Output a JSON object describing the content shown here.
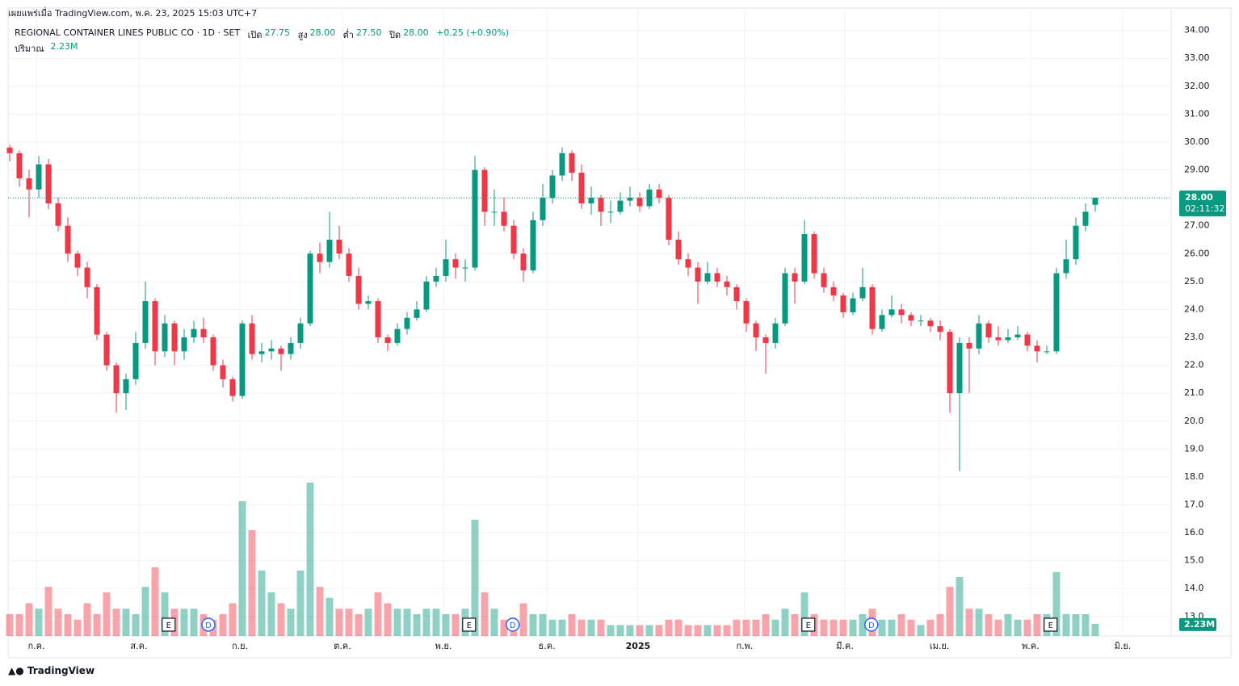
{
  "chart_data": {
    "type": "candlestick",
    "published": "เผยแพร่เมื่อ TradingView.com, พ.ค. 23, 2025 15:03 UTC+7",
    "title": "REGIONAL CONTAINER LINES PUBLIC CO · 1D · SET",
    "legend": {
      "open_label": "เปิด",
      "open": "27.75",
      "high_label": "สูง",
      "high": "28.00",
      "low_label": "ต่ำ",
      "low": "27.50",
      "close_label": "ปิด",
      "close": "28.00",
      "change": "+0.25 (+0.90%)"
    },
    "up_color": "#089981",
    "down_color": "#f23645",
    "candles": [
      [
        29.8,
        29.9,
        29.3,
        29.6
      ],
      [
        29.6,
        29.7,
        28.4,
        28.7
      ],
      [
        28.7,
        29.0,
        27.3,
        28.3
      ],
      [
        28.3,
        29.5,
        28.0,
        29.2
      ],
      [
        29.2,
        29.4,
        27.6,
        27.8
      ],
      [
        27.8,
        28.0,
        26.8,
        27.0
      ],
      [
        27.0,
        27.3,
        25.7,
        26.0
      ],
      [
        26.0,
        26.1,
        25.2,
        25.5
      ],
      [
        25.5,
        25.7,
        24.4,
        24.8
      ],
      [
        24.8,
        24.9,
        22.9,
        23.1
      ],
      [
        23.1,
        23.2,
        21.8,
        22.0
      ],
      [
        22.0,
        22.1,
        20.3,
        21.0
      ],
      [
        21.0,
        21.7,
        20.4,
        21.5
      ],
      [
        21.5,
        23.2,
        21.3,
        22.8
      ],
      [
        22.8,
        25.0,
        22.6,
        24.3
      ],
      [
        24.3,
        24.4,
        22.0,
        22.5
      ],
      [
        22.5,
        23.8,
        22.3,
        23.5
      ],
      [
        23.5,
        23.6,
        22.0,
        22.5
      ],
      [
        22.5,
        23.3,
        22.2,
        23.0
      ],
      [
        23.0,
        23.6,
        22.8,
        23.3
      ],
      [
        23.3,
        23.7,
        22.8,
        23.0
      ],
      [
        23.0,
        23.1,
        21.8,
        22.0
      ],
      [
        22.0,
        22.2,
        21.2,
        21.5
      ],
      [
        21.5,
        21.6,
        20.7,
        20.9
      ],
      [
        20.9,
        23.6,
        20.8,
        23.5
      ],
      [
        23.5,
        23.8,
        22.2,
        22.4
      ],
      [
        22.4,
        22.8,
        22.1,
        22.5
      ],
      [
        22.5,
        22.9,
        22.2,
        22.6
      ],
      [
        22.6,
        22.7,
        21.8,
        22.4
      ],
      [
        22.4,
        23.0,
        22.2,
        22.8
      ],
      [
        22.8,
        23.7,
        22.6,
        23.5
      ],
      [
        23.5,
        26.1,
        23.4,
        26.0
      ],
      [
        26.0,
        26.4,
        25.3,
        25.7
      ],
      [
        25.7,
        27.5,
        25.5,
        26.5
      ],
      [
        26.5,
        27.0,
        25.8,
        26.0
      ],
      [
        26.0,
        26.2,
        25.0,
        25.2
      ],
      [
        25.2,
        25.5,
        24.0,
        24.2
      ],
      [
        24.2,
        24.5,
        24.0,
        24.3
      ],
      [
        24.3,
        24.4,
        22.8,
        23.0
      ],
      [
        23.0,
        23.1,
        22.5,
        22.8
      ],
      [
        22.8,
        23.5,
        22.7,
        23.3
      ],
      [
        23.3,
        23.9,
        23.1,
        23.7
      ],
      [
        23.7,
        24.3,
        23.6,
        24.0
      ],
      [
        24.0,
        25.2,
        23.9,
        25.0
      ],
      [
        25.0,
        25.5,
        24.8,
        25.2
      ],
      [
        25.2,
        26.5,
        25.0,
        25.8
      ],
      [
        25.8,
        26.0,
        25.1,
        25.5
      ],
      [
        25.5,
        25.8,
        25.0,
        25.5
      ],
      [
        25.5,
        29.5,
        25.4,
        29.0
      ],
      [
        29.0,
        29.1,
        27.0,
        27.5
      ],
      [
        27.5,
        28.3,
        27.0,
        27.5
      ],
      [
        27.5,
        28.0,
        26.8,
        27.0
      ],
      [
        27.0,
        27.2,
        25.8,
        26.0
      ],
      [
        26.0,
        26.2,
        25.0,
        25.4
      ],
      [
        25.4,
        27.5,
        25.3,
        27.2
      ],
      [
        27.2,
        28.5,
        27.0,
        28.0
      ],
      [
        28.0,
        29.0,
        27.8,
        28.8
      ],
      [
        28.8,
        29.8,
        28.6,
        29.6
      ],
      [
        29.6,
        29.7,
        28.6,
        28.9
      ],
      [
        28.9,
        29.2,
        27.6,
        27.8
      ],
      [
        27.8,
        28.4,
        27.4,
        28.0
      ],
      [
        28.0,
        28.1,
        27.0,
        27.5
      ],
      [
        27.5,
        27.9,
        27.1,
        27.5
      ],
      [
        27.5,
        28.2,
        27.4,
        27.9
      ],
      [
        27.9,
        28.4,
        27.7,
        28.0
      ],
      [
        28.0,
        28.2,
        27.5,
        27.7
      ],
      [
        27.7,
        28.5,
        27.6,
        28.3
      ],
      [
        28.3,
        28.5,
        27.8,
        28.0
      ],
      [
        28.0,
        28.1,
        26.3,
        26.5
      ],
      [
        26.5,
        26.8,
        25.6,
        25.8
      ],
      [
        25.8,
        26.0,
        25.2,
        25.5
      ],
      [
        25.5,
        25.7,
        24.2,
        25.0
      ],
      [
        25.0,
        25.7,
        24.9,
        25.3
      ],
      [
        25.3,
        25.5,
        24.8,
        25.0
      ],
      [
        25.0,
        25.2,
        24.5,
        24.8
      ],
      [
        24.8,
        24.9,
        24.0,
        24.3
      ],
      [
        24.3,
        24.4,
        23.2,
        23.5
      ],
      [
        23.5,
        23.6,
        22.5,
        23.0
      ],
      [
        23.0,
        23.1,
        21.7,
        22.8
      ],
      [
        22.8,
        23.7,
        22.6,
        23.5
      ],
      [
        23.5,
        25.5,
        23.4,
        25.3
      ],
      [
        25.3,
        25.5,
        24.2,
        25.0
      ],
      [
        25.0,
        27.2,
        24.9,
        26.7
      ],
      [
        26.7,
        26.8,
        25.1,
        25.3
      ],
      [
        25.3,
        25.5,
        24.6,
        24.8
      ],
      [
        24.8,
        25.0,
        24.3,
        24.5
      ],
      [
        24.5,
        24.6,
        23.7,
        23.9
      ],
      [
        23.9,
        24.6,
        23.8,
        24.4
      ],
      [
        24.4,
        25.5,
        24.3,
        24.8
      ],
      [
        24.8,
        24.9,
        23.1,
        23.3
      ],
      [
        23.3,
        24.0,
        23.2,
        23.8
      ],
      [
        23.8,
        24.5,
        23.7,
        24.0
      ],
      [
        24.0,
        24.2,
        23.5,
        23.8
      ],
      [
        23.8,
        23.9,
        23.4,
        23.6
      ],
      [
        23.6,
        23.8,
        23.4,
        23.6
      ],
      [
        23.6,
        23.7,
        23.2,
        23.4
      ],
      [
        23.4,
        23.6,
        22.9,
        23.2
      ],
      [
        23.2,
        23.3,
        20.3,
        21.0
      ],
      [
        21.0,
        23.0,
        18.2,
        22.8
      ],
      [
        22.8,
        23.0,
        21.0,
        22.6
      ],
      [
        22.6,
        23.8,
        22.4,
        23.5
      ],
      [
        23.5,
        23.6,
        22.8,
        23.0
      ],
      [
        23.0,
        23.4,
        22.7,
        22.9
      ],
      [
        22.9,
        23.3,
        22.8,
        23.0
      ],
      [
        23.0,
        23.4,
        22.9,
        23.1
      ],
      [
        23.1,
        23.2,
        22.5,
        22.7
      ],
      [
        22.7,
        22.9,
        22.1,
        22.5
      ],
      [
        22.5,
        22.7,
        22.4,
        22.5
      ],
      [
        22.5,
        25.5,
        22.4,
        25.3
      ],
      [
        25.3,
        26.5,
        25.1,
        25.8
      ],
      [
        25.8,
        27.3,
        25.6,
        27.0
      ],
      [
        27.0,
        27.8,
        26.8,
        27.5
      ],
      [
        27.75,
        28.0,
        27.5,
        28.0
      ]
    ],
    "volume": {
      "name": "ปริมาณ",
      "values": [
        4,
        4,
        6,
        5,
        9,
        5,
        4,
        3,
        6,
        4,
        8,
        5,
        5,
        4,
        9,
        12.6,
        8,
        5,
        5,
        5,
        4,
        3,
        4,
        6,
        24.7,
        19.4,
        12,
        8,
        6,
        5,
        12,
        28.1,
        9,
        7,
        5,
        5,
        4,
        5,
        8,
        6,
        5,
        5,
        4,
        5,
        5,
        4,
        4,
        5,
        21.3,
        8,
        5,
        3,
        3,
        6,
        4,
        4,
        3,
        3,
        4,
        3,
        3,
        3,
        2,
        2,
        2,
        2,
        2,
        2,
        3,
        3,
        2,
        2,
        2,
        2,
        2,
        3,
        3,
        3,
        4,
        3,
        5,
        4,
        8,
        4,
        3,
        3,
        3,
        3,
        4,
        5,
        3,
        3,
        4,
        3,
        2,
        3,
        4,
        9,
        10.8,
        5,
        5,
        4,
        3,
        4,
        3,
        3,
        4,
        4,
        11.7,
        4,
        4,
        4,
        2.23
      ],
      "value_label": "2.23M"
    },
    "ylim": [
      12.3,
      34.8
    ],
    "yticks": [
      {
        "value": 13,
        "label": "13.0"
      },
      {
        "value": 14,
        "label": "14.0"
      },
      {
        "value": 15,
        "label": "15.0"
      },
      {
        "value": 16,
        "label": "16.0"
      },
      {
        "value": 17,
        "label": "17.0"
      },
      {
        "value": 18,
        "label": "18.0"
      },
      {
        "value": 19,
        "label": "19.0"
      },
      {
        "value": 20,
        "label": "20.0"
      },
      {
        "value": 21,
        "label": "21.0"
      },
      {
        "value": 22,
        "label": "22.0"
      },
      {
        "value": 23,
        "label": "23.0"
      },
      {
        "value": 24,
        "label": "24.0"
      },
      {
        "value": 25,
        "label": "25.0"
      },
      {
        "value": 26,
        "label": "26.00"
      },
      {
        "value": 27,
        "label": "27.00"
      },
      {
        "value": 28,
        "label": "28.00"
      },
      {
        "value": 29,
        "label": "29.00"
      },
      {
        "value": 30,
        "label": "30.00"
      },
      {
        "value": 31,
        "label": "31.00"
      },
      {
        "value": 32,
        "label": "32.00"
      },
      {
        "value": 33,
        "label": "33.00"
      },
      {
        "value": 34,
        "label": "34.00"
      }
    ],
    "xticks": [
      {
        "value": 2.75,
        "label": "ก.ค."
      },
      {
        "value": 13.33,
        "label": "ส.ค."
      },
      {
        "value": 23.75,
        "label": "ก.ย."
      },
      {
        "value": 34.33,
        "label": "ต.ค."
      },
      {
        "value": 44.75,
        "label": "พ.ย."
      },
      {
        "value": 55.42,
        "label": "ธ.ค."
      },
      {
        "value": 64.83,
        "label": "2025"
      },
      {
        "value": 75.83,
        "label": "ก.พ."
      },
      {
        "value": 86.17,
        "label": "มี.ค."
      },
      {
        "value": 95.92,
        "label": "เม.ย."
      },
      {
        "value": 105.33,
        "label": "พ.ค."
      },
      {
        "value": 114.83,
        "label": "มิ.ย."
      }
    ],
    "last_price": {
      "value": 28,
      "label": "28.00",
      "countdown": "02:11:32"
    },
    "events": [
      {
        "label": "E",
        "index": 16.4
      },
      {
        "label": "D",
        "index": 20.5
      },
      {
        "label": "E",
        "index": 47.4
      },
      {
        "label": "D",
        "index": 51.9
      },
      {
        "label": "E",
        "index": 82.4
      },
      {
        "label": "D",
        "index": 88.9
      },
      {
        "label": "E",
        "index": 107.4
      }
    ],
    "footer": "TradingView"
  }
}
